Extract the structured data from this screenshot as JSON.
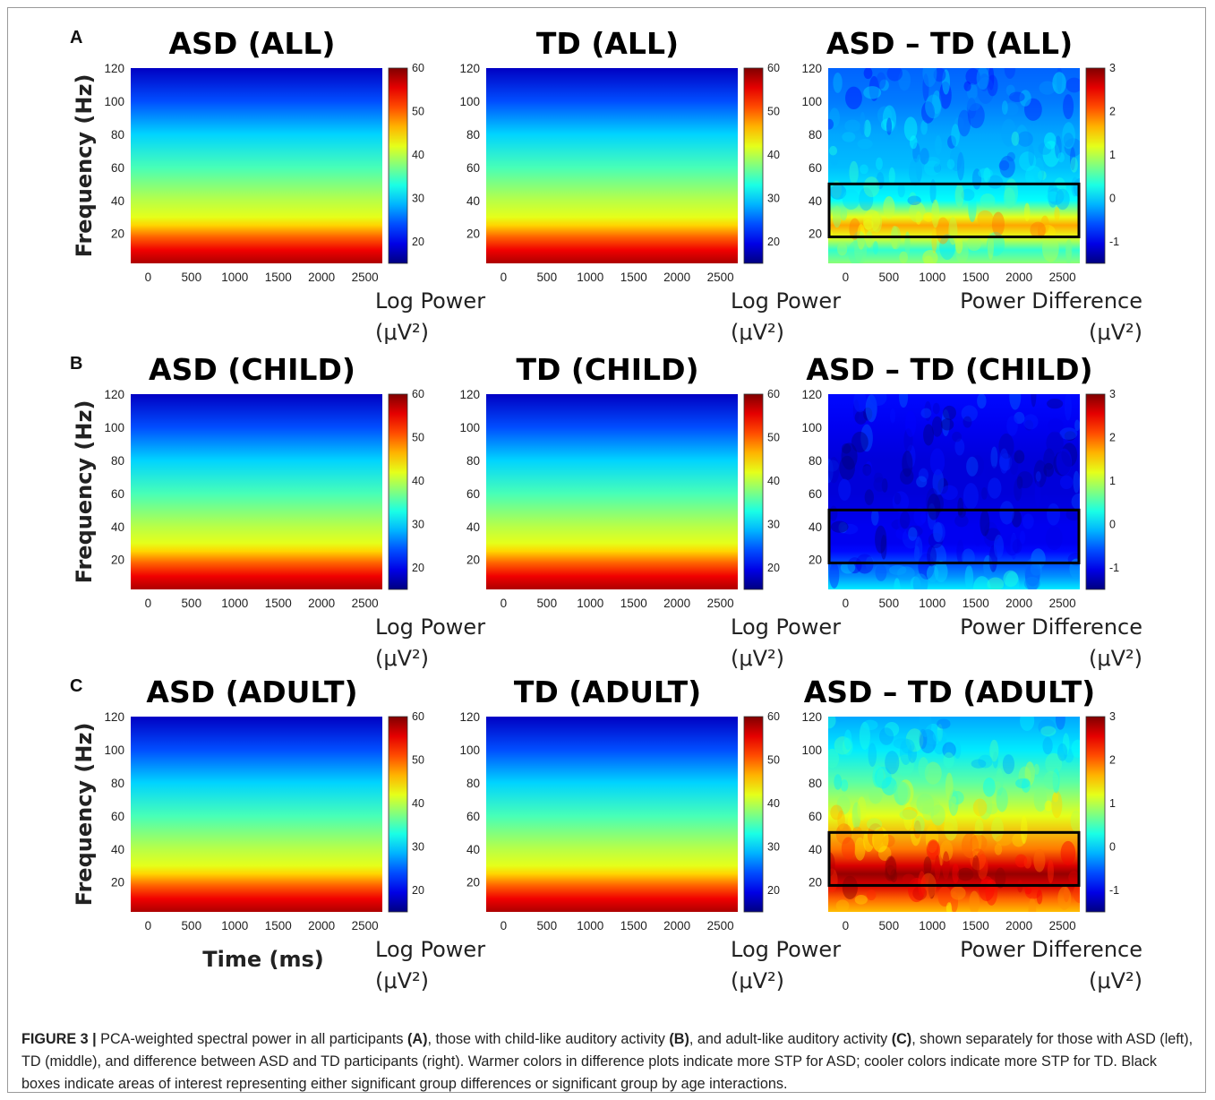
{
  "figure": {
    "caption": {
      "label": "FIGURE 3 |",
      "segments": [
        {
          "text": " PCA-weighted spectral power in all participants ",
          "bold": false
        },
        {
          "text": "(A)",
          "bold": true
        },
        {
          "text": ", those with child-like auditory activity ",
          "bold": false
        },
        {
          "text": "(B)",
          "bold": true
        },
        {
          "text": ", and adult-like auditory activity ",
          "bold": false
        },
        {
          "text": "(C)",
          "bold": true
        },
        {
          "text": ", shown separately for those with ASD (left), TD (middle), and difference between ASD and TD participants (right). Warmer colors in difference plots indicate more STP for ASD; cooler colors indicate more STP for TD. Black boxes indicate areas of interest representing either significant group differences or significant group by age interactions.",
          "bold": false
        }
      ]
    },
    "shared_labels": {
      "ylabel": "Frequency (Hz)",
      "xlabel": "Time (ms)"
    }
  },
  "chart_data": [
    {
      "type": "heatmap",
      "panel": "A",
      "title": "ASD (ALL)",
      "kind": "power",
      "x_ticks": [
        0,
        500,
        1000,
        1500,
        2000,
        2500
      ],
      "y_ticks": [
        20,
        40,
        60,
        80,
        100,
        120
      ],
      "xlim": [
        -200,
        2700
      ],
      "ylim": [
        2,
        120
      ],
      "colorbar": {
        "ticks": [
          20,
          30,
          40,
          50,
          60
        ],
        "range": [
          15,
          60
        ],
        "label": [
          "Log Power",
          "(μV²)"
        ]
      },
      "colormap": "jet",
      "profile": {
        "frequency_hz": [
          2,
          10,
          18,
          25,
          30,
          40,
          60,
          80,
          100,
          120
        ],
        "value": [
          58,
          55,
          50,
          45,
          42,
          40,
          35,
          30,
          24,
          18
        ]
      },
      "box": null
    },
    {
      "type": "heatmap",
      "panel": "A",
      "title": "TD (ALL)",
      "kind": "power",
      "x_ticks": [
        0,
        500,
        1000,
        1500,
        2000,
        2500
      ],
      "y_ticks": [
        20,
        40,
        60,
        80,
        100,
        120
      ],
      "xlim": [
        -200,
        2700
      ],
      "ylim": [
        2,
        120
      ],
      "colorbar": {
        "ticks": [
          20,
          30,
          40,
          50,
          60
        ],
        "range": [
          15,
          60
        ],
        "label": [
          "Log Power",
          "(μV²)"
        ]
      },
      "colormap": "jet",
      "profile": {
        "frequency_hz": [
          2,
          10,
          18,
          25,
          30,
          40,
          60,
          80,
          100,
          120
        ],
        "value": [
          58,
          55,
          50,
          45,
          42,
          40,
          35,
          30,
          24,
          18
        ]
      },
      "box": null
    },
    {
      "type": "heatmap",
      "panel": "A",
      "title": "ASD – TD (ALL)",
      "kind": "difference",
      "x_ticks": [
        0,
        500,
        1000,
        1500,
        2000,
        2500
      ],
      "y_ticks": [
        20,
        40,
        60,
        80,
        100,
        120
      ],
      "xlim": [
        -200,
        2700
      ],
      "ylim": [
        2,
        120
      ],
      "colorbar": {
        "ticks": [
          -1,
          0,
          1,
          2,
          3
        ],
        "range": [
          -1.5,
          3
        ],
        "label": [
          "Power Difference",
          "(μV²)"
        ]
      },
      "colormap": "jet",
      "profile": {
        "frequency_hz": [
          2,
          10,
          18,
          25,
          30,
          40,
          60,
          80,
          100,
          120
        ],
        "value": [
          0.8,
          0.4,
          1.2,
          1.7,
          1.2,
          0.2,
          -0.1,
          -0.2,
          -0.4,
          -0.5
        ]
      },
      "box": {
        "time_ms": [
          -200,
          2700
        ],
        "frequency_hz": [
          18,
          50
        ]
      }
    },
    {
      "type": "heatmap",
      "panel": "B",
      "title": "ASD (CHILD)",
      "kind": "power",
      "x_ticks": [
        0,
        500,
        1000,
        1500,
        2000,
        2500
      ],
      "y_ticks": [
        20,
        40,
        60,
        80,
        100,
        120
      ],
      "xlim": [
        -200,
        2700
      ],
      "ylim": [
        2,
        120
      ],
      "colorbar": {
        "ticks": [
          20,
          30,
          40,
          50,
          60
        ],
        "range": [
          15,
          60
        ],
        "label": [
          "Log Power",
          "(μV²)"
        ]
      },
      "colormap": "jet",
      "profile": {
        "frequency_hz": [
          2,
          10,
          18,
          25,
          30,
          40,
          60,
          80,
          100,
          120
        ],
        "value": [
          58,
          55,
          50,
          45,
          42,
          40,
          35,
          30,
          24,
          18
        ]
      },
      "box": null
    },
    {
      "type": "heatmap",
      "panel": "B",
      "title": "TD (CHILD)",
      "kind": "power",
      "x_ticks": [
        0,
        500,
        1000,
        1500,
        2000,
        2500
      ],
      "y_ticks": [
        20,
        40,
        60,
        80,
        100,
        120
      ],
      "xlim": [
        -200,
        2700
      ],
      "ylim": [
        2,
        120
      ],
      "colorbar": {
        "ticks": [
          20,
          30,
          40,
          50,
          60
        ],
        "range": [
          15,
          60
        ],
        "label": [
          "Log Power",
          "(μV²)"
        ]
      },
      "colormap": "jet",
      "profile": {
        "frequency_hz": [
          2,
          10,
          18,
          25,
          30,
          40,
          60,
          80,
          100,
          120
        ],
        "value": [
          58,
          55,
          50,
          45,
          42,
          40,
          35,
          30,
          24,
          18
        ]
      },
      "box": null
    },
    {
      "type": "heatmap",
      "panel": "B",
      "title": "ASD – TD (CHILD)",
      "kind": "difference",
      "x_ticks": [
        0,
        500,
        1000,
        1500,
        2000,
        2500
      ],
      "y_ticks": [
        20,
        40,
        60,
        80,
        100,
        120
      ],
      "xlim": [
        -200,
        2700
      ],
      "ylim": [
        2,
        120
      ],
      "colorbar": {
        "ticks": [
          -1,
          0,
          1,
          2,
          3
        ],
        "range": [
          -1.5,
          3
        ],
        "label": [
          "Power Difference",
          "(μV²)"
        ]
      },
      "colormap": "jet",
      "profile": {
        "frequency_hz": [
          2,
          10,
          18,
          25,
          30,
          40,
          60,
          80,
          100,
          120
        ],
        "value": [
          0.1,
          -0.3,
          -0.6,
          -0.9,
          -1.0,
          -1.0,
          -1.1,
          -1.1,
          -1.0,
          -0.9
        ]
      },
      "box": {
        "time_ms": [
          -200,
          2700
        ],
        "frequency_hz": [
          18,
          50
        ]
      }
    },
    {
      "type": "heatmap",
      "panel": "C",
      "title": "ASD (ADULT)",
      "kind": "power",
      "x_ticks": [
        0,
        500,
        1000,
        1500,
        2000,
        2500
      ],
      "y_ticks": [
        20,
        40,
        60,
        80,
        100,
        120
      ],
      "xlim": [
        -200,
        2700
      ],
      "ylim": [
        2,
        120
      ],
      "colorbar": {
        "ticks": [
          20,
          30,
          40,
          50,
          60
        ],
        "range": [
          15,
          60
        ],
        "label": [
          "Log Power",
          "(μV²)"
        ]
      },
      "colormap": "jet",
      "profile": {
        "frequency_hz": [
          2,
          10,
          18,
          25,
          30,
          40,
          60,
          80,
          100,
          120
        ],
        "value": [
          58,
          55,
          50,
          45,
          42,
          40,
          35,
          30,
          24,
          18
        ]
      },
      "box": null
    },
    {
      "type": "heatmap",
      "panel": "C",
      "title": "TD (ADULT)",
      "kind": "power",
      "x_ticks": [
        0,
        500,
        1000,
        1500,
        2000,
        2500
      ],
      "y_ticks": [
        20,
        40,
        60,
        80,
        100,
        120
      ],
      "xlim": [
        -200,
        2700
      ],
      "ylim": [
        2,
        120
      ],
      "colorbar": {
        "ticks": [
          20,
          30,
          40,
          50,
          60
        ],
        "range": [
          15,
          60
        ],
        "label": [
          "Log Power",
          "(μV²)"
        ]
      },
      "colormap": "jet",
      "profile": {
        "frequency_hz": [
          2,
          10,
          18,
          25,
          30,
          40,
          60,
          80,
          100,
          120
        ],
        "value": [
          58,
          55,
          50,
          45,
          42,
          40,
          35,
          30,
          24,
          18
        ]
      },
      "box": null
    },
    {
      "type": "heatmap",
      "panel": "C",
      "title": "ASD – TD (ADULT)",
      "kind": "difference",
      "x_ticks": [
        0,
        500,
        1000,
        1500,
        2000,
        2500
      ],
      "y_ticks": [
        20,
        40,
        60,
        80,
        100,
        120
      ],
      "xlim": [
        -200,
        2700
      ],
      "ylim": [
        2,
        120
      ],
      "colorbar": {
        "ticks": [
          -1,
          0,
          1,
          2,
          3
        ],
        "range": [
          -1.5,
          3
        ],
        "label": [
          "Power Difference",
          "(μV²)"
        ]
      },
      "colormap": "jet",
      "profile": {
        "frequency_hz": [
          2,
          10,
          18,
          25,
          30,
          40,
          60,
          80,
          100,
          120
        ],
        "value": [
          1.6,
          2.0,
          2.6,
          2.9,
          2.6,
          1.9,
          1.2,
          0.6,
          0.1,
          -0.2
        ]
      },
      "box": {
        "time_ms": [
          -200,
          2700
        ],
        "frequency_hz": [
          18,
          50
        ]
      }
    }
  ]
}
